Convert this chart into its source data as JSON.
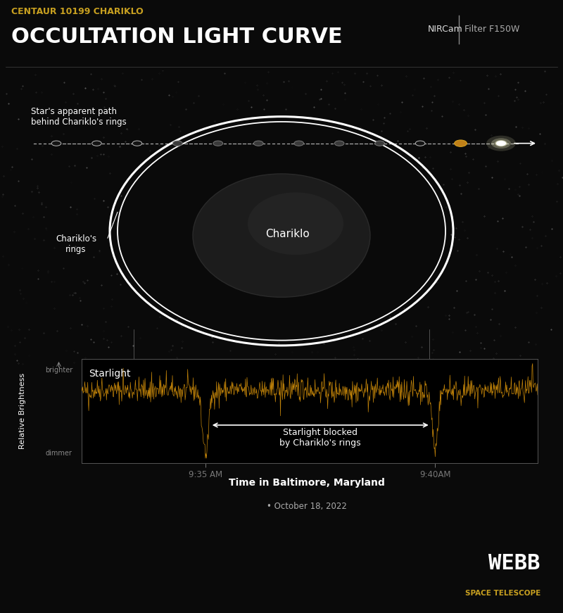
{
  "bg_color": "#0a0a0a",
  "title_sub": "CENTAUR 10199 CHARIKLO",
  "title_main": "OCCULTATION LIGHT CURVE",
  "title_sub_color": "#c8a020",
  "title_main_color": "#ffffff",
  "nircam_text": "NIRCam",
  "filter_text": "Filter F150W",
  "chariklo_label": "Chariklo",
  "rings_label": "Chariklo's\nrings",
  "star_path_label": "Star's apparent path\nbehind Chariklo's rings",
  "star_blocked_label": "Starlight blocked\nby Chariklo's rings",
  "starlight_label": "Starlight",
  "brighter_label": "brighter",
  "dimmer_label": "dimmer",
  "ylabel": "Relative Brightness",
  "xlabel": "Time in Baltimore, Maryland",
  "xlabel2": "October 18, 2022",
  "xtick1": "9:35 AM",
  "xtick2": "9:40AM",
  "signal_color": "#d4900a",
  "bg_plot": "#000000"
}
